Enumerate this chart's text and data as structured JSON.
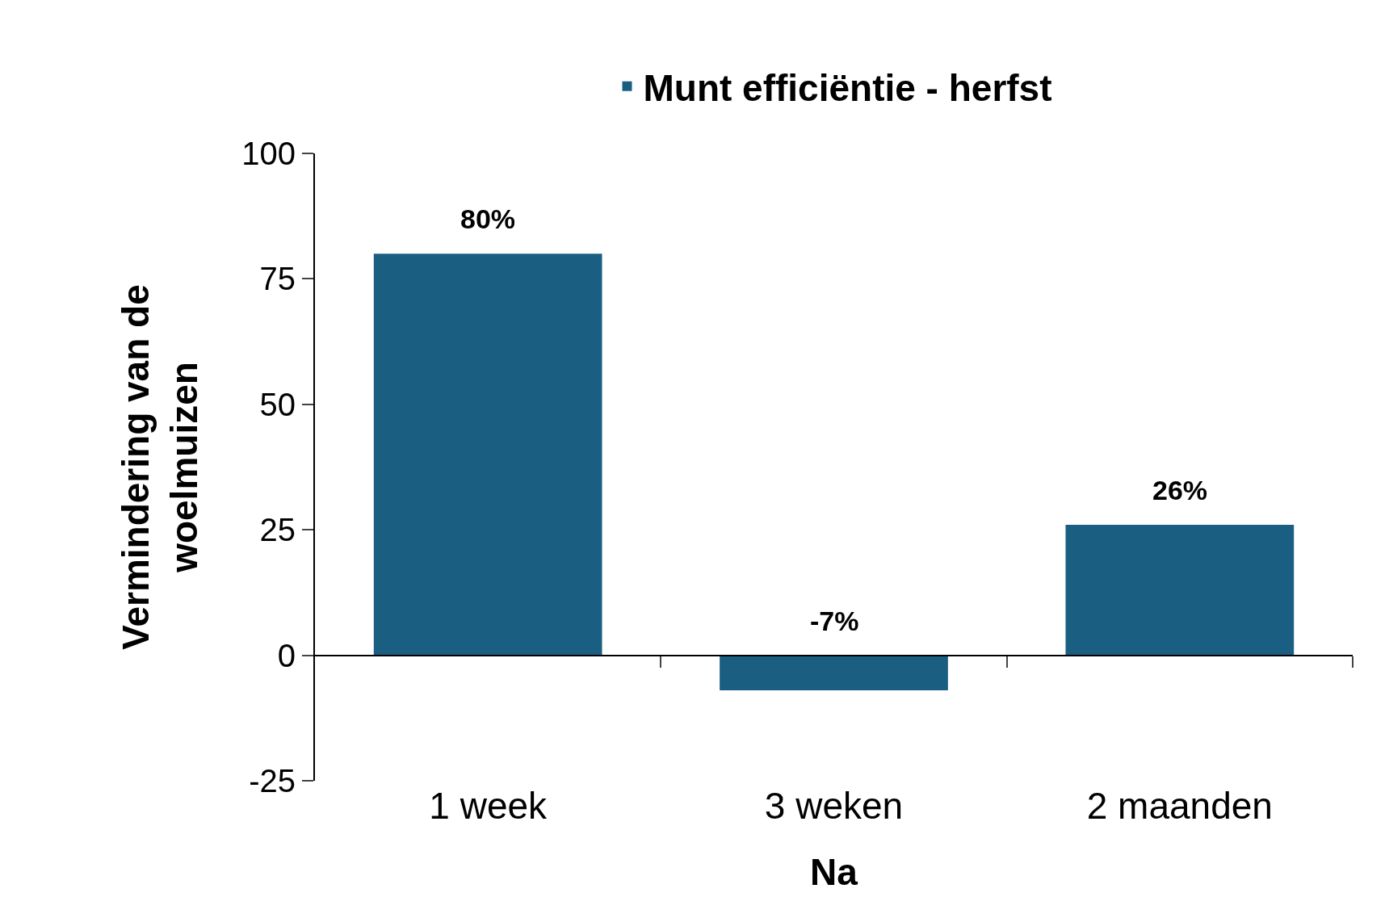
{
  "chart_data": {
    "type": "bar",
    "xlabel": "Na",
    "ylabel": "Vermindering van de\nwoelmuizen",
    "categories": [
      "1 week",
      "3 weken",
      "2 maanden"
    ],
    "series": [
      {
        "name": "Munt efficiëntie - herfst",
        "color": "#1a5f82",
        "values": [
          80,
          -7,
          26
        ],
        "value_labels": [
          "80%",
          "-7%",
          "26%"
        ]
      }
    ],
    "ylim": [
      -25,
      100
    ],
    "yticks": [
      -25,
      0,
      25,
      50,
      75,
      100
    ],
    "legend": "top"
  }
}
